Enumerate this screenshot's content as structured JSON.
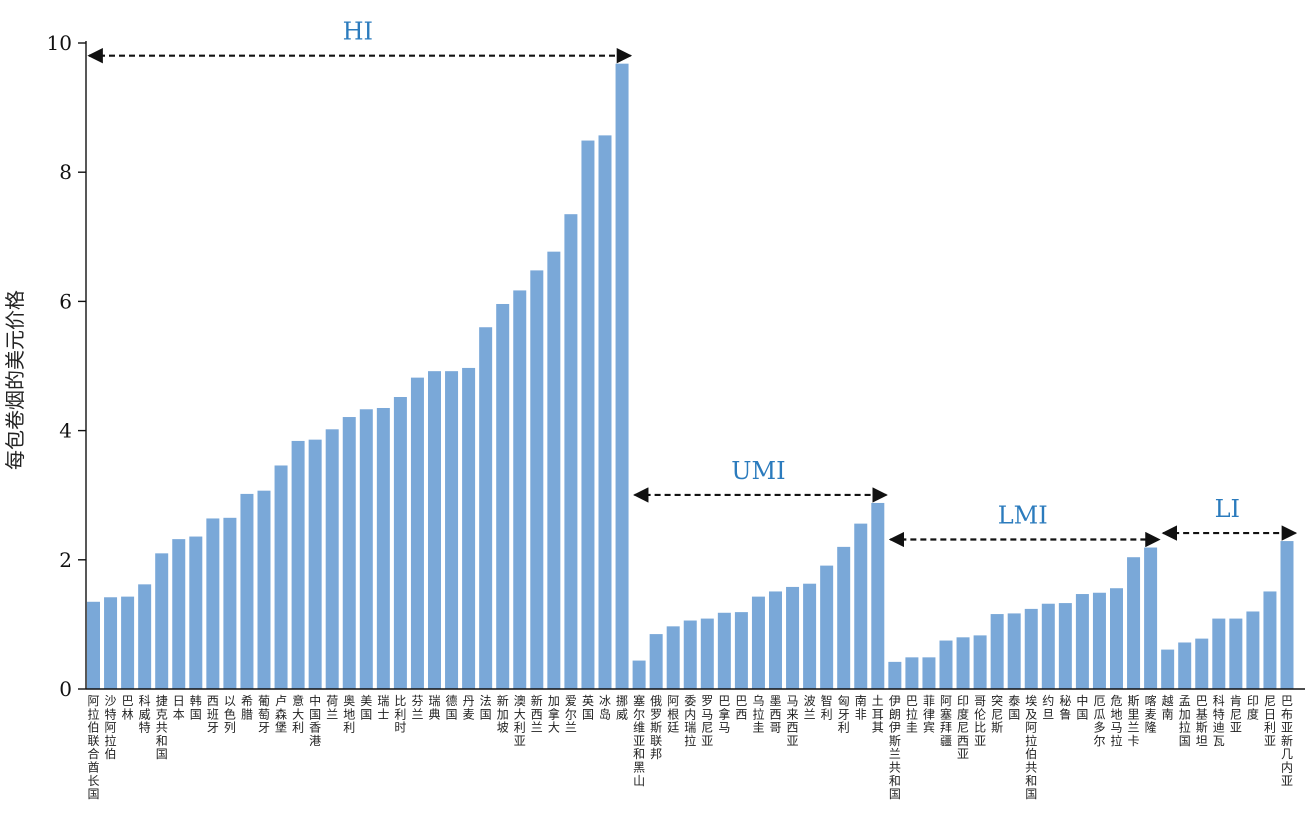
{
  "chart_data": {
    "type": "bar",
    "xlabel": "",
    "ylabel": "每包卷烟的美元价格",
    "ylim": [
      0,
      10
    ],
    "yticks": [
      "0",
      "2",
      "4",
      "6",
      "8",
      "10"
    ],
    "grid": false,
    "bar_color": "#7aa8d8",
    "group_label_color": "#2b7bbd",
    "categories": [
      "阿拉伯联合酋长国",
      "沙特阿拉伯",
      "巴林",
      "科威特",
      "捷克共和国",
      "日本",
      "韩国",
      "西班牙",
      "以色列",
      "希腊",
      "葡萄牙",
      "卢森堡",
      "意大利",
      "中国香港",
      "荷兰",
      "奥地利",
      "美国",
      "瑞士",
      "比利时",
      "芬兰",
      "瑞典",
      "德国",
      "丹麦",
      "法国",
      "新加坡",
      "澳大利亚",
      "新西兰",
      "加拿大",
      "爱尔兰",
      "英国",
      "冰岛",
      "挪威",
      "塞尔维亚和黑山",
      "俄罗斯联邦",
      "阿根廷",
      "委内瑞拉",
      "罗马尼亚",
      "巴拿马",
      "巴西",
      "乌拉圭",
      "墨西哥",
      "马来西亚",
      "波兰",
      "智利",
      "匈牙利",
      "南非",
      "土耳其",
      "伊朗伊斯兰共和国",
      "巴拉圭",
      "菲律宾",
      "阿塞拜疆",
      "印度尼西亚",
      "哥伦比亚",
      "突尼斯",
      "泰国",
      "埃及阿拉伯共和国",
      "约旦",
      "秘鲁",
      "中国",
      "厄瓜多尔",
      "危地马拉",
      "斯里兰卡",
      "喀麦隆",
      "越南",
      "孟加拉国",
      "巴基斯坦",
      "科特迪瓦",
      "肯尼亚",
      "印度",
      "尼日利亚",
      "巴布亚新几内亚"
    ],
    "values": [
      1.35,
      1.42,
      1.43,
      1.62,
      2.1,
      2.32,
      2.36,
      2.64,
      2.65,
      3.02,
      3.07,
      3.46,
      3.84,
      3.86,
      4.02,
      4.21,
      4.33,
      4.35,
      4.52,
      4.82,
      4.92,
      4.92,
      4.97,
      5.6,
      5.96,
      6.17,
      6.48,
      6.77,
      7.35,
      8.49,
      8.57,
      9.68,
      0.44,
      0.85,
      0.97,
      1.06,
      1.09,
      1.18,
      1.19,
      1.43,
      1.51,
      1.58,
      1.63,
      1.91,
      2.2,
      2.56,
      2.88,
      0.42,
      0.49,
      0.49,
      0.75,
      0.8,
      0.83,
      1.16,
      1.17,
      1.24,
      1.32,
      1.33,
      1.47,
      1.49,
      1.56,
      2.04,
      2.19,
      0.61,
      0.72,
      0.78,
      1.09,
      1.09,
      1.2,
      1.51,
      2.29
    ],
    "groups": [
      {
        "label": "HI",
        "start": 0,
        "end": 31
      },
      {
        "label": "UMI",
        "start": 32,
        "end": 46
      },
      {
        "label": "LMI",
        "start": 47,
        "end": 62
      },
      {
        "label": "LI",
        "start": 63,
        "end": 70
      }
    ]
  }
}
